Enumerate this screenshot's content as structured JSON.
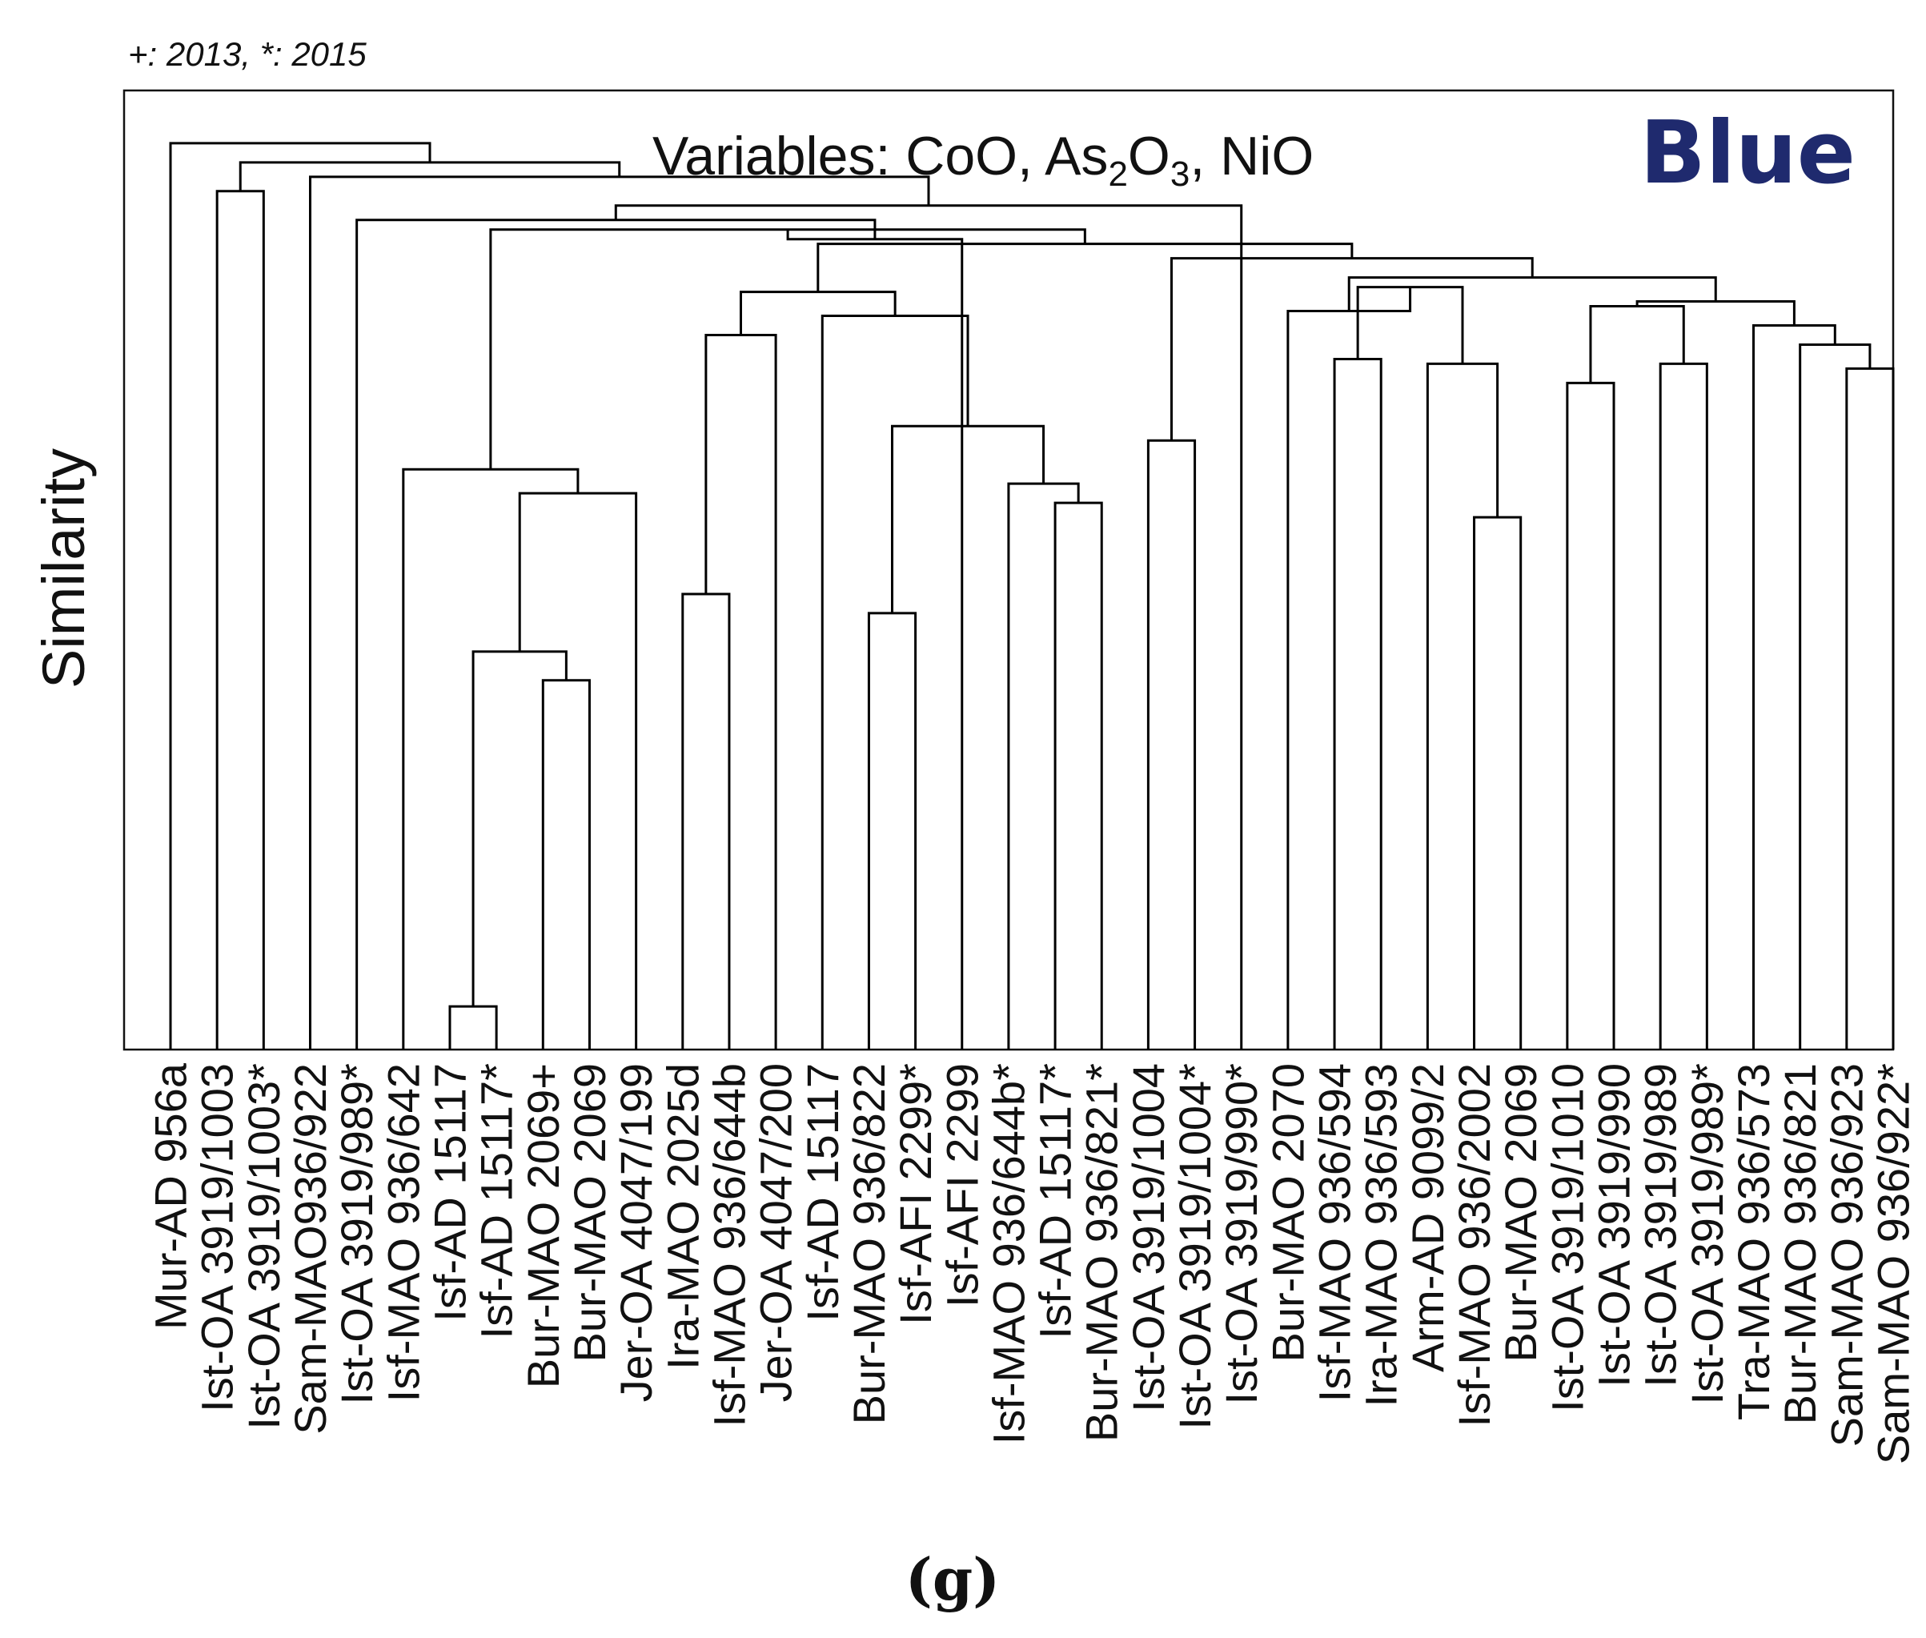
{
  "legend_note": "+: 2013, *: 2015",
  "panel_label": "(g)",
  "chart_data": {
    "type": "dendrogram",
    "title": "Variables: CoO, As2O3, NiO",
    "title_parts": {
      "prefix": "Variables: CoO, As",
      "sub1": "2",
      "mid": "O",
      "sub2": "3",
      "suffix": ", NiO"
    },
    "color_tag": "Blue",
    "ylabel": "Similarity",
    "xlabel": "",
    "ylim": [
      0,
      100
    ],
    "leaves": [
      "Mur-AD 956a",
      "Ist-OA 3919/1003",
      "Ist-OA 3919/1003*",
      "Sam-MAO936/922",
      "Ist-OA 3919/989*",
      "Isf-MAO 936/642",
      "Isf-AD 15117",
      "Isf-AD 15117*",
      "Bur-MAO 2069+",
      "Bur-MAO 2069",
      "Jer-OA 4047/199",
      "Ira-MAO 2025d",
      "Isf-MAO 936/644b",
      "Jer-OA 4047/200",
      "Isf-AD 15117",
      "Bur-MAO 936/822",
      "Isf-AFI 2299*",
      "Isf-AFI 2299",
      "Isf-MAO 936/644b*",
      "Isf-AD 15117*",
      "Bur-MAO 936/821*",
      "Ist-OA 3919/1004",
      "Ist-OA 3919/1004*",
      "Ist-OA 3919/990*",
      "Bur-MAO 2070",
      "Isf-MAO 936/594",
      "Ira-MAO 936/593",
      "Arm-AD 9099/2",
      "Isf-MAO 936/2002",
      "Bur-MAO 2069",
      "Ist-OA 3919/1010",
      "Ist-OA 3919/990",
      "Ist-OA 3919/989",
      "Ist-OA 3919/989*",
      "Tra-MAO 936/573",
      "Bur-MAO 936/821",
      "Sam-MAO 936/923",
      "Sam-MAO 936/922*"
    ],
    "merges": [
      {
        "a": 6,
        "b": 7,
        "h": 4.5
      },
      {
        "a": 8,
        "b": 9,
        "h": 38.5
      },
      {
        "a": 38,
        "b": 39,
        "h": 41.5
      },
      {
        "a": 28,
        "b": 29,
        "h": 55.5
      },
      {
        "a": 11,
        "b": 12,
        "h": 47.5
      },
      {
        "a": 15,
        "b": 16,
        "h": 45.5
      },
      {
        "a": 19,
        "b": 20,
        "h": 57
      },
      {
        "a": 18,
        "b": 44,
        "h": 59
      },
      {
        "a": 43,
        "b": 45,
        "h": 65
      },
      {
        "a": 40,
        "b": 10,
        "h": 58
      },
      {
        "a": 5,
        "b": 47,
        "h": 60.5
      },
      {
        "a": 21,
        "b": 22,
        "h": 63.5
      },
      {
        "a": 36,
        "b": 37,
        "h": 71
      },
      {
        "a": 35,
        "b": 50,
        "h": 73.5
      },
      {
        "a": 34,
        "b": 51,
        "h": 75.5
      },
      {
        "a": 30,
        "b": 31,
        "h": 69.5
      },
      {
        "a": 32,
        "b": 33,
        "h": 71.5
      },
      {
        "a": 53,
        "b": 54,
        "h": 77.5
      },
      {
        "a": 52,
        "b": 55,
        "h": 78
      },
      {
        "a": 27,
        "b": 41,
        "h": 71.5
      },
      {
        "a": 25,
        "b": 26,
        "h": 72
      },
      {
        "a": 58,
        "b": 57,
        "h": 79.5
      },
      {
        "a": 24,
        "b": 59,
        "h": 77
      },
      {
        "a": 60,
        "b": 56,
        "h": 80.5
      },
      {
        "a": 42,
        "b": 13,
        "h": 74.5
      },
      {
        "a": 14,
        "b": 46,
        "h": 76.5
      },
      {
        "a": 62,
        "b": 63,
        "h": 79
      },
      {
        "a": 61,
        "b": 49,
        "h": 82.5
      },
      {
        "a": 64,
        "b": 65,
        "h": 84
      },
      {
        "a": 48,
        "b": 66,
        "h": 85.5
      },
      {
        "a": 67,
        "b": 17,
        "h": 84.5
      },
      {
        "a": 4,
        "b": 68,
        "h": 86.5
      },
      {
        "a": 23,
        "b": 69,
        "h": 88
      },
      {
        "a": 1,
        "b": 2,
        "h": 89.5
      },
      {
        "a": 3,
        "b": 70,
        "h": 91
      },
      {
        "a": 71,
        "b": 72,
        "h": 92.5
      },
      {
        "a": 0,
        "b": 73,
        "h": 94.5
      }
    ]
  }
}
